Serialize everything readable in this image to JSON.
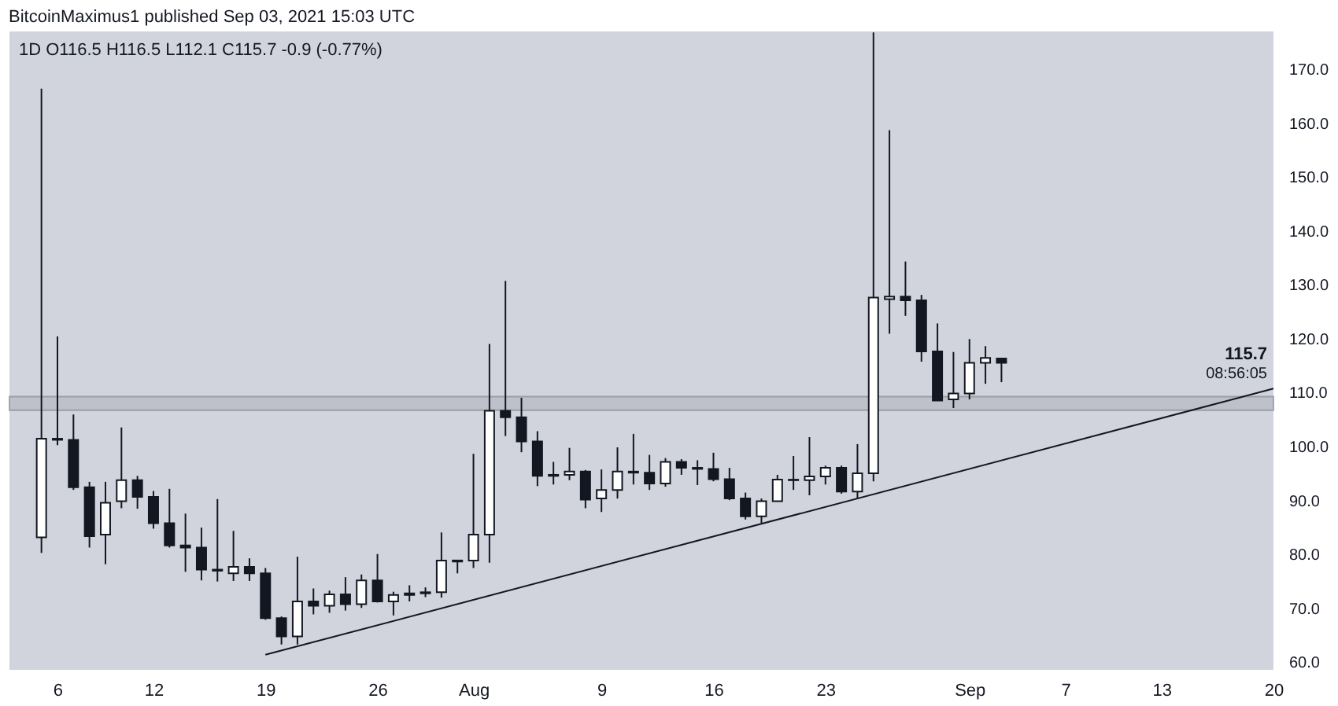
{
  "chart_data": {
    "type": "candlestick",
    "title": "BitcoinMaximus1 published Sep 03, 2021 15:03 UTC",
    "x": [
      "2021-07-05",
      "2021-07-06",
      "2021-07-07",
      "2021-07-08",
      "2021-07-09",
      "2021-07-10",
      "2021-07-11",
      "2021-07-12",
      "2021-07-13",
      "2021-07-14",
      "2021-07-15",
      "2021-07-16",
      "2021-07-17",
      "2021-07-18",
      "2021-07-19",
      "2021-07-20",
      "2021-07-21",
      "2021-07-22",
      "2021-07-23",
      "2021-07-24",
      "2021-07-25",
      "2021-07-26",
      "2021-07-27",
      "2021-07-28",
      "2021-07-29",
      "2021-07-30",
      "2021-07-31",
      "2021-08-01",
      "2021-08-02",
      "2021-08-03",
      "2021-08-04",
      "2021-08-05",
      "2021-08-06",
      "2021-08-07",
      "2021-08-08",
      "2021-08-09",
      "2021-08-10",
      "2021-08-11",
      "2021-08-12",
      "2021-08-13",
      "2021-08-14",
      "2021-08-15",
      "2021-08-16",
      "2021-08-17",
      "2021-08-18",
      "2021-08-19",
      "2021-08-20",
      "2021-08-21",
      "2021-08-22",
      "2021-08-23",
      "2021-08-24",
      "2021-08-25",
      "2021-08-26",
      "2021-08-27",
      "2021-08-28",
      "2021-08-29",
      "2021-08-30",
      "2021-08-31",
      "2021-09-01",
      "2021-09-02",
      "2021-09-03"
    ],
    "ohlc": [
      [
        83.3,
        166.6,
        80.4,
        101.6
      ],
      [
        101.6,
        120.6,
        100.4,
        101.4
      ],
      [
        101.4,
        106.1,
        92.1,
        92.6
      ],
      [
        92.6,
        93.6,
        81.4,
        83.5
      ],
      [
        83.8,
        93.6,
        78.3,
        89.7
      ],
      [
        90.0,
        103.7,
        88.7,
        93.9
      ],
      [
        93.9,
        94.7,
        88.6,
        90.8
      ],
      [
        90.8,
        91.9,
        84.9,
        85.9
      ],
      [
        85.9,
        92.3,
        81.4,
        81.8
      ],
      [
        81.8,
        87.7,
        76.9,
        81.4
      ],
      [
        81.4,
        85.1,
        75.3,
        77.3
      ],
      [
        77.3,
        90.4,
        75.1,
        77.1
      ],
      [
        76.6,
        84.5,
        75.2,
        77.8
      ],
      [
        77.8,
        79.4,
        75.2,
        76.6
      ],
      [
        76.6,
        77.6,
        68.0,
        68.3
      ],
      [
        68.3,
        68.6,
        63.4,
        64.9
      ],
      [
        64.9,
        79.7,
        63.4,
        71.4
      ],
      [
        71.4,
        73.8,
        69.0,
        70.6
      ],
      [
        70.6,
        73.4,
        69.3,
        72.7
      ],
      [
        72.7,
        75.9,
        69.7,
        70.9
      ],
      [
        70.9,
        76.4,
        70.2,
        75.3
      ],
      [
        75.3,
        80.2,
        71.2,
        71.4
      ],
      [
        71.4,
        73.2,
        68.8,
        72.6
      ],
      [
        72.6,
        74.4,
        71.4,
        72.9
      ],
      [
        72.9,
        74.0,
        72.2,
        73.1
      ],
      [
        73.1,
        84.2,
        72.1,
        79.0
      ],
      [
        79.0,
        79.1,
        76.6,
        78.8
      ],
      [
        79.0,
        98.8,
        77.6,
        83.8
      ],
      [
        83.8,
        119.2,
        78.6,
        106.8
      ],
      [
        106.8,
        130.9,
        102.1,
        105.6
      ],
      [
        105.6,
        109.2,
        99.1,
        101.1
      ],
      [
        101.1,
        103.0,
        92.8,
        94.7
      ],
      [
        94.7,
        97.3,
        93.1,
        94.9
      ],
      [
        94.9,
        99.9,
        93.9,
        95.5
      ],
      [
        95.5,
        95.8,
        88.7,
        90.3
      ],
      [
        90.5,
        95.9,
        88.0,
        92.1
      ],
      [
        92.1,
        100.0,
        90.5,
        95.5
      ],
      [
        95.5,
        102.5,
        93.1,
        95.3
      ],
      [
        95.3,
        98.6,
        92.1,
        93.3
      ],
      [
        93.3,
        98.0,
        92.7,
        97.3
      ],
      [
        97.3,
        97.8,
        94.9,
        96.2
      ],
      [
        96.2,
        97.6,
        93.0,
        96.0
      ],
      [
        96.0,
        99.0,
        93.7,
        94.1
      ],
      [
        94.1,
        96.2,
        90.2,
        90.5
      ],
      [
        90.5,
        91.6,
        86.6,
        87.2
      ],
      [
        87.2,
        90.5,
        85.9,
        90.0
      ],
      [
        90.0,
        94.9,
        90.0,
        94.0
      ],
      [
        94.0,
        98.4,
        92.1,
        93.9
      ],
      [
        93.9,
        101.9,
        91.1,
        94.6
      ],
      [
        94.6,
        96.6,
        93.1,
        96.2
      ],
      [
        96.2,
        96.6,
        91.4,
        91.8
      ],
      [
        91.8,
        100.6,
        90.4,
        95.2
      ],
      [
        95.2,
        177.0,
        93.7,
        127.8
      ],
      [
        127.5,
        158.9,
        121.1,
        128.0
      ],
      [
        128.0,
        134.5,
        124.4,
        127.3
      ],
      [
        127.3,
        128.3,
        115.9,
        117.8
      ],
      [
        117.8,
        123.0,
        108.7,
        108.7
      ],
      [
        108.9,
        117.7,
        107.3,
        110.0
      ],
      [
        110.0,
        120.1,
        108.9,
        115.7
      ],
      [
        115.7,
        118.8,
        111.8,
        116.6
      ],
      [
        116.5,
        116.5,
        112.1,
        115.7
      ]
    ],
    "colors": [
      "#ffffff",
      "#ffffff",
      "#131722",
      "#131722",
      "#ffffff",
      "#ffffff",
      "#131722",
      "#131722",
      "#131722",
      "#131722",
      "#131722",
      "#131722",
      "#ffffff",
      "#131722",
      "#131722",
      "#131722",
      "#ffffff",
      "#131722",
      "#ffffff",
      "#131722",
      "#ffffff",
      "#131722",
      "#ffffff",
      "#ffffff",
      "#ffffff",
      "#ffffff",
      "#131722",
      "#ffffff",
      "#ffffff",
      "#131722",
      "#131722",
      "#131722",
      "#ffffff",
      "#ffffff",
      "#131722",
      "#ffffff",
      "#ffffff",
      "#131722",
      "#131722",
      "#ffffff",
      "#131722",
      "#131722",
      "#131722",
      "#131722",
      "#131722",
      "#ffffff",
      "#ffffff",
      "#131722",
      "#ffffff",
      "#ffffff",
      "#131722",
      "#ffffff",
      "#ffffff",
      "#ffffff",
      "#131722",
      "#131722",
      "#131722",
      "#ffffff",
      "#ffffff",
      "#ffffff",
      "#131722"
    ],
    "series": [
      {
        "type": "line",
        "x": [
          "2021-07-19",
          "2021-09-20"
        ],
        "values": [
          61.5,
          110.9
        ],
        "color": "#131722"
      }
    ],
    "bands": [
      {
        "axis": "y",
        "from": 106.9,
        "to": 109.4,
        "color": "#b2b5be"
      }
    ],
    "annotations": [
      "1D  O116.5 H116.5 L112.1 C115.7 -0.9 (-0.77%)",
      "115.7",
      "08:56:05"
    ],
    "xlim": [
      "2021-07-03",
      "2021-09-20"
    ],
    "xticks": [
      {
        "value": "2021-07-06",
        "label": "6"
      },
      {
        "value": "2021-07-12",
        "label": "12"
      },
      {
        "value": "2021-07-19",
        "label": "19"
      },
      {
        "value": "2021-07-26",
        "label": "26"
      },
      {
        "value": "2021-08-01",
        "label": "Aug"
      },
      {
        "value": "2021-08-09",
        "label": "9"
      },
      {
        "value": "2021-08-16",
        "label": "16"
      },
      {
        "value": "2021-08-23",
        "label": "23"
      },
      {
        "value": "2021-09-01",
        "label": "Sep"
      },
      {
        "value": "2021-09-07",
        "label": "7"
      },
      {
        "value": "2021-09-13",
        "label": "13"
      },
      {
        "value": "2021-09-20",
        "label": "20"
      }
    ],
    "ylim": [
      58.7,
      177.2
    ],
    "yticks": [
      {
        "value": 60,
        "label": "60.0"
      },
      {
        "value": 70,
        "label": "70.0"
      },
      {
        "value": 80,
        "label": "80.0"
      },
      {
        "value": 90,
        "label": "90.0"
      },
      {
        "value": 100,
        "label": "100.0"
      },
      {
        "value": 110,
        "label": "110.0"
      },
      {
        "value": 120,
        "label": "120.0"
      },
      {
        "value": 130,
        "label": "130.0"
      },
      {
        "value": 140,
        "label": "140.0"
      },
      {
        "value": 150,
        "label": "150.0"
      },
      {
        "value": 160,
        "label": "160.0"
      },
      {
        "value": 170,
        "label": "170.0"
      }
    ],
    "grid": false
  }
}
